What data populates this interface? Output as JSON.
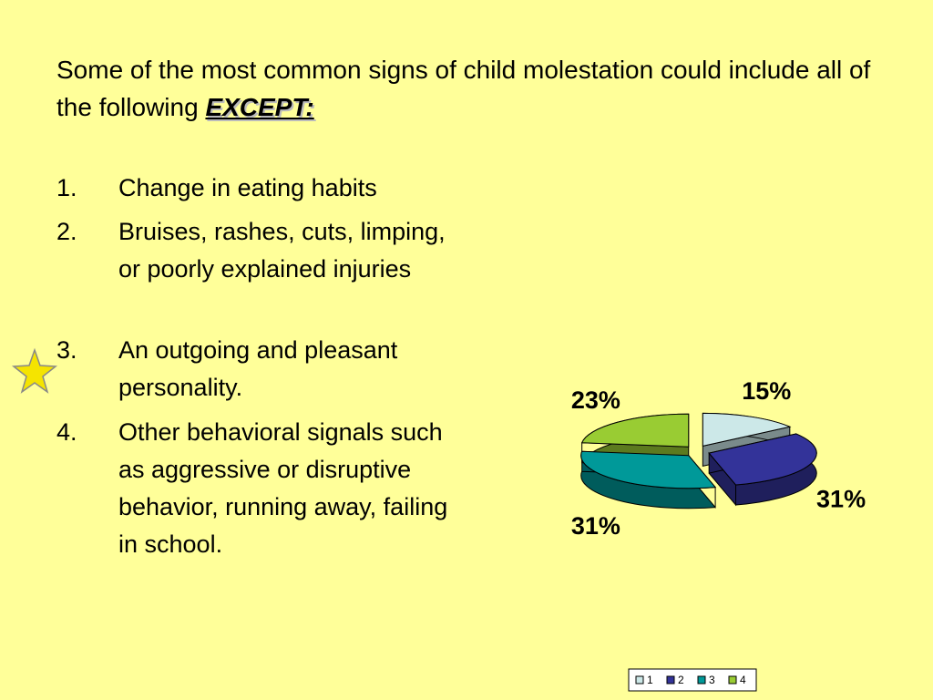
{
  "question": {
    "text": "Some of the most common signs of child molestation could include all of the following",
    "emphasis": "EXCEPT:"
  },
  "options": [
    {
      "number": "1.",
      "text": "Change in eating habits"
    },
    {
      "number": "2.",
      "text": "Bruises, rashes, cuts, limping, or poorly explained injuries"
    },
    {
      "number": "3.",
      "text": "An outgoing and pleasant personality."
    },
    {
      "number": "4.",
      "text": "Other behavioral signals such as aggressive or disruptive behavior, running away, failing in school."
    }
  ],
  "chart_data": {
    "type": "pie",
    "categories": [
      "1",
      "2",
      "3",
      "4"
    ],
    "values": [
      15,
      31,
      31,
      23
    ],
    "value_labels": [
      "15%",
      "31%",
      "31%",
      "23%"
    ],
    "colors": [
      "#cce8e8",
      "#333399",
      "#009999",
      "#99cc33"
    ],
    "legend": "bottom"
  }
}
